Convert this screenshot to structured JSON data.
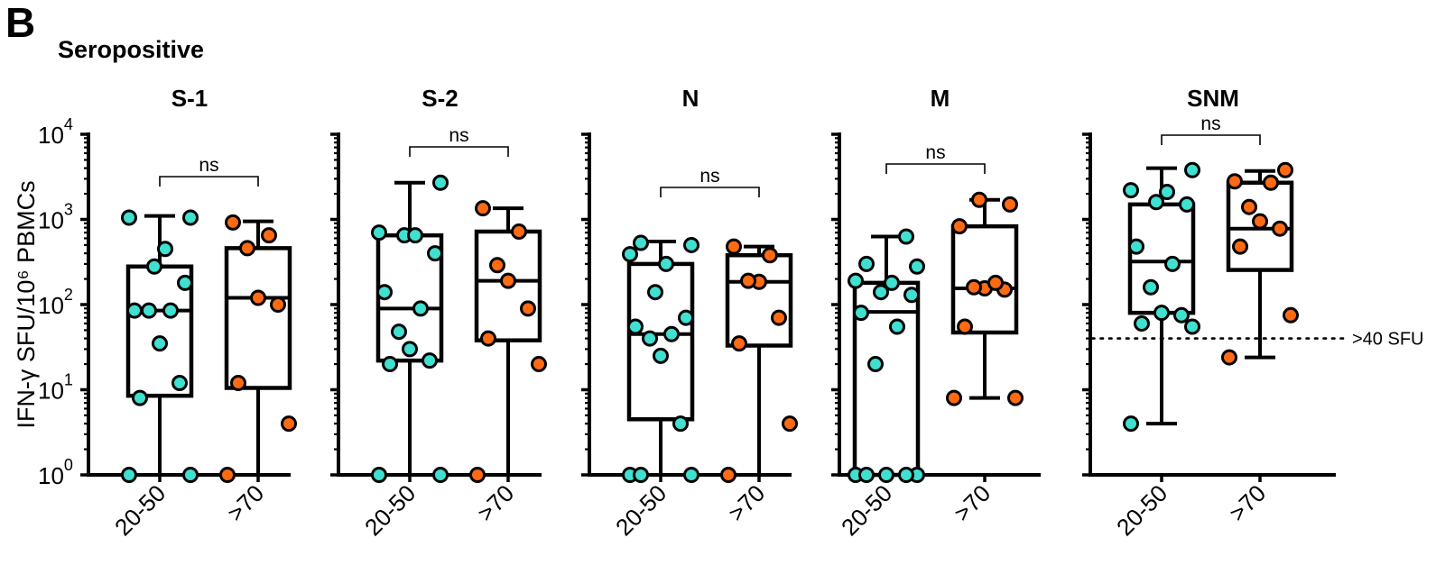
{
  "figure": {
    "panel_letter": "B",
    "group_label": "Seropositive",
    "ylabel": "IFN-γ SFU/10⁶ PBMCs",
    "threshold_label": ">40 SFU",
    "sig_label": "ns"
  },
  "colors": {
    "group1": "#40E0D0",
    "group2": "#FF6A13",
    "stroke": "#000000"
  },
  "chart_data": {
    "type": "box",
    "yscale": "log",
    "ylim": [
      1,
      10000
    ],
    "y_ticks": [
      {
        "base": "10",
        "exp": "0"
      },
      {
        "base": "10",
        "exp": "1"
      },
      {
        "base": "10",
        "exp": "2"
      },
      {
        "base": "10",
        "exp": "3"
      },
      {
        "base": "10",
        "exp": "4"
      }
    ],
    "categories": [
      "20-50",
      ">70"
    ],
    "threshold": 40,
    "panels": [
      {
        "title": "S-1",
        "groups": [
          {
            "name": "20-50",
            "min": 1,
            "q1": 8.5,
            "median": 85,
            "q3": 280,
            "max": 1100,
            "points": [
              1,
              1,
              8,
              12,
              35,
              85,
              85,
              85,
              180,
              280,
              450,
              1050,
              1050
            ]
          },
          {
            "name": ">70",
            "min": 1,
            "q1": 10.5,
            "median": 120,
            "q3": 460,
            "max": 950,
            "points": [
              1,
              4,
              12,
              100,
              120,
              460,
              650,
              920
            ]
          }
        ],
        "sig": "ns"
      },
      {
        "title": "S-2",
        "groups": [
          {
            "name": "20-50",
            "min": 1,
            "q1": 22,
            "median": 90,
            "q3": 650,
            "max": 2700,
            "points": [
              1,
              1,
              20,
              22,
              30,
              48,
              90,
              140,
              400,
              650,
              650,
              700,
              2700
            ]
          },
          {
            "name": ">70",
            "min": 1,
            "q1": 38,
            "median": 190,
            "q3": 720,
            "max": 1350,
            "points": [
              1,
              20,
              40,
              90,
              190,
              290,
              720,
              1350
            ]
          }
        ],
        "sig": "ns"
      },
      {
        "title": "N",
        "groups": [
          {
            "name": "20-50",
            "min": 1,
            "q1": 4.5,
            "median": 45,
            "q3": 300,
            "max": 550,
            "points": [
              1,
              1,
              1,
              4,
              25,
              40,
              45,
              55,
              70,
              140,
              300,
              390,
              500,
              530
            ]
          },
          {
            "name": ">70",
            "min": 1,
            "q1": 33,
            "median": 185,
            "q3": 380,
            "max": 480,
            "points": [
              1,
              4,
              35,
              70,
              185,
              190,
              380,
              480
            ]
          }
        ],
        "sig": "ns"
      },
      {
        "title": "M",
        "groups": [
          {
            "name": "20-50",
            "min": 1,
            "q1": 1,
            "median": 82,
            "q3": 180,
            "max": 630,
            "points": [
              1,
              1,
              1,
              1,
              1,
              20,
              55,
              80,
              130,
              140,
              180,
              190,
              280,
              300,
              630
            ]
          },
          {
            "name": ">70",
            "min": 8,
            "q1": 47,
            "median": 155,
            "q3": 830,
            "max": 1700,
            "points": [
              8,
              8,
              55,
              150,
              155,
              160,
              180,
              830,
              1500,
              1700
            ]
          }
        ],
        "sig": "ns"
      },
      {
        "title": "SNM",
        "groups": [
          {
            "name": "20-50",
            "min": 4,
            "q1": 80,
            "median": 320,
            "q3": 1500,
            "max": 4000,
            "points": [
              4,
              55,
              60,
              75,
              80,
              160,
              300,
              480,
              1500,
              1600,
              2100,
              2200,
              3800
            ]
          },
          {
            "name": ">70",
            "min": 24,
            "q1": 255,
            "median": 780,
            "q3": 2700,
            "max": 3700,
            "points": [
              24,
              75,
              480,
              780,
              950,
              1400,
              2700,
              2800,
              3800
            ]
          }
        ],
        "sig": "ns"
      }
    ]
  }
}
